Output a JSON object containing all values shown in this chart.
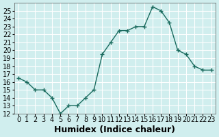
{
  "x": [
    0,
    1,
    2,
    3,
    4,
    5,
    6,
    7,
    8,
    9,
    10,
    11,
    12,
    13,
    14,
    15,
    16,
    17,
    18,
    19,
    20,
    21,
    22,
    23
  ],
  "y": [
    16.5,
    16,
    15,
    15,
    14,
    12,
    13,
    13,
    14,
    15,
    19.5,
    21,
    22.5,
    22.5,
    23,
    23,
    25.5,
    25,
    23.5,
    20,
    19.5,
    18,
    17.5,
    17.5
  ],
  "line_color": "#1a6b5e",
  "marker": "+",
  "marker_size": 5,
  "bg_color": "#d0eeee",
  "grid_color": "#ffffff",
  "xlabel": "Humidex (Indice chaleur)",
  "xlabel_fontsize": 9,
  "tick_fontsize": 7,
  "ylim": [
    12,
    26
  ],
  "xlim": [
    -0.5,
    23.5
  ],
  "yticks": [
    12,
    13,
    14,
    15,
    16,
    17,
    18,
    19,
    20,
    21,
    22,
    23,
    24,
    25
  ],
  "xticks": [
    0,
    1,
    2,
    3,
    4,
    5,
    6,
    7,
    8,
    9,
    10,
    11,
    12,
    13,
    14,
    15,
    16,
    17,
    18,
    19,
    20,
    21,
    22,
    23
  ]
}
